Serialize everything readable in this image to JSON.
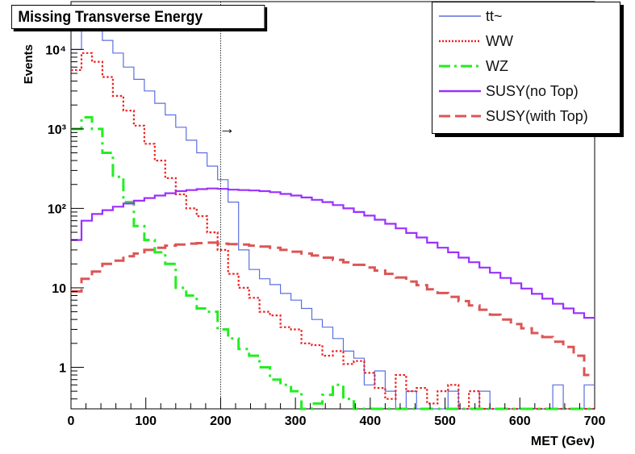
{
  "chart_data": {
    "type": "line",
    "title": "Missing Transverse Energy",
    "xlabel": "MET (Gev)",
    "ylabel": "Events",
    "xlim": [
      0,
      700
    ],
    "ylim": [
      0.3,
      40000
    ],
    "yscale": "log",
    "grid": false,
    "legend_position": "top-right",
    "x_ticks": [
      "0",
      "100",
      "200",
      "300",
      "400",
      "500",
      "600",
      "700"
    ],
    "y_ticks": [
      {
        "value": 1,
        "label": "1"
      },
      {
        "value": 10,
        "label": "10"
      },
      {
        "value": 100,
        "label": "10²"
      },
      {
        "value": 1000,
        "label": "10³"
      },
      {
        "value": 10000,
        "label": "10⁴"
      }
    ],
    "cut_line": {
      "x": 200,
      "arrow": "→"
    },
    "bin_width": 14,
    "series": [
      {
        "name": "tt~",
        "color": "#5a6fe0",
        "style": "solid",
        "width": 1.2,
        "values": [
          10000,
          20000,
          18000,
          13000,
          9000,
          6000,
          4200,
          3000,
          2100,
          1500,
          1050,
          720,
          500,
          340,
          230,
          120,
          30,
          17,
          13,
          11,
          8.5,
          7,
          5.5,
          4,
          3.2,
          2.3,
          1.6,
          1.3,
          0.6,
          0.9,
          0.5,
          0.3,
          0.5,
          0.3,
          0.3,
          0.3,
          0.5,
          0.3,
          0.3,
          0.5,
          0.3,
          0.3,
          0.3,
          0.3,
          0.3,
          0.3,
          0.6,
          0.3,
          0.3,
          0.6
        ]
      },
      {
        "name": "WW",
        "color": "#ee2222",
        "style": "dotted",
        "width": 2.2,
        "values": [
          5500,
          9000,
          7000,
          4500,
          2600,
          1700,
          1100,
          650,
          400,
          240,
          150,
          100,
          80,
          50,
          30,
          15,
          10,
          7.5,
          5,
          4.5,
          3.2,
          3,
          2,
          1.9,
          1.4,
          1.6,
          1.1,
          1.2,
          0.85,
          0.55,
          0.4,
          0.8,
          0.5,
          0.55,
          0.35,
          0.5,
          0.6,
          0.3,
          0.5,
          0.3,
          0.3,
          0.3,
          0.3,
          0.3,
          0.3,
          0.3,
          0.3,
          0.3,
          0.3,
          0.3
        ]
      },
      {
        "name": "WZ",
        "color": "#22ee22",
        "style": "dashdot",
        "width": 3,
        "values": [
          1000,
          1400,
          1000,
          500,
          250,
          120,
          60,
          40,
          28,
          20,
          10,
          8,
          5.5,
          5,
          3,
          2.3,
          1.7,
          1.4,
          1,
          0.7,
          0.6,
          0.5,
          0.3,
          0.35,
          0.45,
          0.6,
          0.4,
          0.3,
          0.3,
          0.3,
          0.3,
          0.3,
          0.3,
          0.3,
          0.3,
          0.3,
          0.3,
          0.3,
          0.3,
          0.3,
          0.3,
          0.3,
          0.3,
          0.3,
          0.3,
          0.3,
          0.3,
          0.3,
          0.3,
          0.3
        ]
      },
      {
        "name": "SUSY(no Top)",
        "color": "#9b30ff",
        "style": "solid",
        "width": 2.2,
        "values": [
          40,
          70,
          85,
          95,
          105,
          115,
          125,
          135,
          145,
          155,
          165,
          170,
          175,
          178,
          176,
          172,
          170,
          168,
          165,
          160,
          152,
          145,
          137,
          128,
          120,
          110,
          100,
          90,
          81,
          72,
          64,
          56,
          49,
          43,
          37,
          32,
          28,
          24,
          21,
          18,
          15.5,
          13.3,
          11.4,
          9.8,
          8.4,
          7.3,
          6.3,
          5.5,
          4.8,
          4.2
        ]
      },
      {
        "name": "SUSY(with Top)",
        "color": "#dd5555",
        "style": "longdash",
        "width": 3,
        "values": [
          9,
          13,
          16,
          20,
          22,
          25,
          27,
          30,
          32,
          34,
          35,
          36,
          36.5,
          37,
          36,
          35.5,
          35,
          34,
          33,
          32,
          30,
          28.5,
          27,
          25.5,
          24,
          22.5,
          21,
          19.5,
          18,
          16.5,
          15,
          13.5,
          12,
          10.8,
          9.6,
          8.6,
          7.7,
          6.8,
          6,
          5.3,
          4.6,
          4,
          3.5,
          3.1,
          2.7,
          2.4,
          2.1,
          1.8,
          1.4,
          0.8
        ]
      }
    ]
  }
}
